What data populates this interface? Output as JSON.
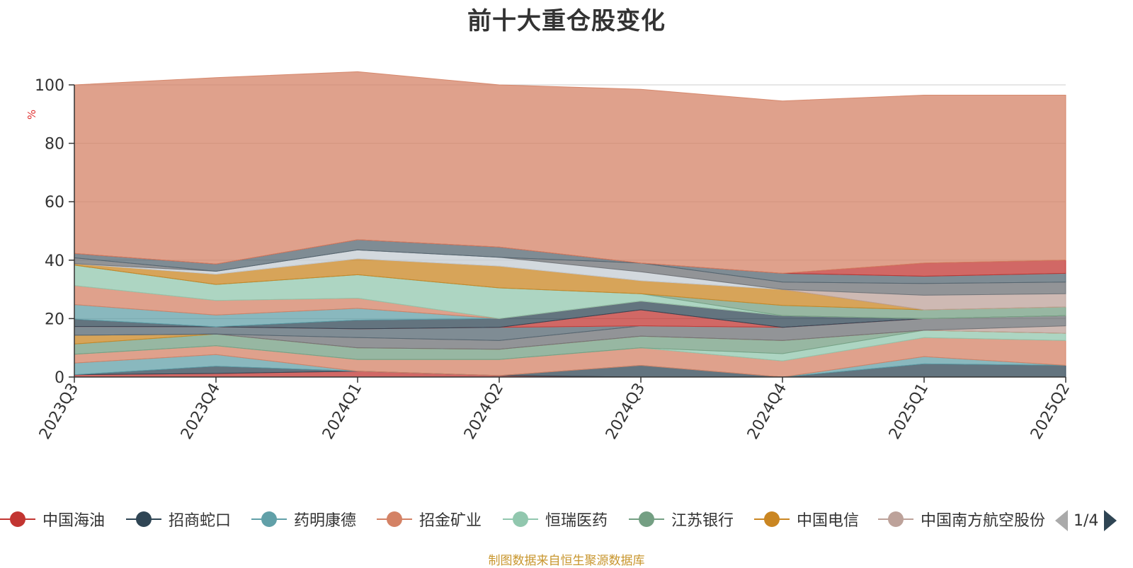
{
  "chart_data": {
    "type": "area",
    "title": "前十大重仓股变化",
    "ylabel": "%",
    "ylim": [
      0,
      100
    ],
    "yticks": [
      0,
      20,
      40,
      60,
      80,
      100
    ],
    "categories": [
      "2023Q3",
      "2023Q4",
      "2024Q1",
      "2024Q2",
      "2024Q3",
      "2024Q4",
      "2025Q1",
      "2025Q2"
    ],
    "grid": true,
    "stacked": true,
    "series": [
      {
        "name": "中国海油",
        "color": "#c23531",
        "values": [
          0.8,
          1.2,
          2.0,
          0.5,
          0.0,
          0.0,
          0.0,
          0.0
        ]
      },
      {
        "name": "招商蛇口",
        "color": "#2f4554",
        "values": [
          0.0,
          2.5,
          0.0,
          0.0,
          4.0,
          0.0,
          4.5,
          4.0
        ]
      },
      {
        "name": "药明康德",
        "color": "#61a0a8",
        "values": [
          4.0,
          4.0,
          0.0,
          0.0,
          0.0,
          0.0,
          2.5,
          0.0
        ]
      },
      {
        "name": "招金矿业",
        "color": "#d48265",
        "values": [
          3.0,
          3.0,
          4.0,
          5.5,
          6.0,
          5.5,
          6.5,
          8.5
        ]
      },
      {
        "name": "恒瑞医药",
        "color": "#91c7ae",
        "values": [
          0.0,
          0.0,
          0.0,
          0.0,
          0.0,
          2.5,
          2.5,
          2.5
        ]
      },
      {
        "name": "江苏银行",
        "color": "#749f83",
        "values": [
          3.5,
          4.0,
          4.0,
          3.5,
          4.0,
          4.5,
          0.0,
          0.0
        ]
      },
      {
        "name": "中国电信",
        "color": "#ca8622",
        "values": [
          3.0,
          0.0,
          0.0,
          0.0,
          0.0,
          0.0,
          0.0,
          0.0
        ]
      },
      {
        "name": "中国南方航空股份",
        "color": "#bda29a",
        "values": [
          0.0,
          0.0,
          0.0,
          0.0,
          0.0,
          0.0,
          0.0,
          2.5
        ]
      },
      {
        "name": "",
        "color": "#6e7074",
        "values": [
          0.0,
          0.0,
          3.5,
          3.0,
          3.5,
          4.5,
          4.0,
          3.5
        ]
      },
      {
        "name": "",
        "color": "#546570",
        "values": [
          3.0,
          2.5,
          3.0,
          4.5,
          0.0,
          0.0,
          0.0,
          0.0
        ]
      },
      {
        "name": "",
        "color": "#c4ccd3",
        "values": [
          0.0,
          0.0,
          0.0,
          0.0,
          0.0,
          0.0,
          0.0,
          0.0
        ]
      },
      {
        "name": "",
        "color": "#c23531",
        "values": [
          0.0,
          0.0,
          0.0,
          0.0,
          5.5,
          0.0,
          0.0,
          0.0
        ]
      },
      {
        "name": "",
        "color": "#2f4554",
        "values": [
          2.5,
          0.0,
          3.0,
          3.0,
          3.0,
          4.0,
          0.0,
          0.0
        ]
      },
      {
        "name": "",
        "color": "#61a0a8",
        "values": [
          5.0,
          4.0,
          4.0,
          0.0,
          0.0,
          0.0,
          0.0,
          0.0
        ]
      },
      {
        "name": "",
        "color": "#d48265",
        "values": [
          6.5,
          5.0,
          3.5,
          0.0,
          0.0,
          0.0,
          0.0,
          0.0
        ]
      },
      {
        "name": "",
        "color": "#91c7ae",
        "values": [
          7.0,
          5.5,
          8.0,
          10.5,
          2.5,
          0.0,
          0.0,
          0.0
        ]
      },
      {
        "name": "",
        "color": "#749f83",
        "values": [
          0.0,
          0.0,
          0.0,
          0.0,
          0.0,
          3.5,
          3.0,
          3.0
        ]
      },
      {
        "name": "",
        "color": "#ca8622",
        "values": [
          0.5,
          3.5,
          5.5,
          7.5,
          4.5,
          5.5,
          0.0,
          0.0
        ]
      },
      {
        "name": "",
        "color": "#bda29a",
        "values": [
          0.0,
          0.0,
          0.0,
          0.0,
          0.0,
          0.0,
          5.0,
          4.5
        ]
      },
      {
        "name": "",
        "color": "#c4ccd3",
        "values": [
          0.0,
          1.0,
          3.0,
          3.0,
          3.0,
          0.0,
          0.0,
          0.0
        ]
      },
      {
        "name": "",
        "color": "#6e7074",
        "values": [
          2.0,
          0.0,
          0.0,
          0.0,
          3.0,
          2.5,
          4.0,
          4.0
        ]
      },
      {
        "name": "",
        "color": "#546570",
        "values": [
          1.5,
          2.5,
          3.5,
          3.5,
          0.0,
          3.0,
          2.5,
          3.0
        ]
      },
      {
        "name": "",
        "color": "#c23531",
        "values": [
          0.0,
          0.0,
          0.0,
          0.0,
          0.0,
          0.0,
          4.5,
          4.5
        ]
      },
      {
        "name": "",
        "color": "#d48265",
        "values": [
          57.7,
          63.8,
          57.5,
          55.5,
          59.5,
          59.0,
          57.5,
          56.5
        ]
      }
    ]
  },
  "legend": {
    "items": [
      {
        "name": "中国海油",
        "color": "#c23531"
      },
      {
        "name": "招商蛇口",
        "color": "#2f4554"
      },
      {
        "name": "药明康德",
        "color": "#61a0a8"
      },
      {
        "name": "招金矿业",
        "color": "#d48265"
      },
      {
        "name": "恒瑞医药",
        "color": "#91c7ae"
      },
      {
        "name": "江苏银行",
        "color": "#749f83"
      },
      {
        "name": "中国电信",
        "color": "#ca8622"
      },
      {
        "name": "中国南方航空股份",
        "color": "#bda29a"
      }
    ],
    "page_text": "1/4"
  },
  "source_text": "制图数据来自恒生聚源数据库"
}
